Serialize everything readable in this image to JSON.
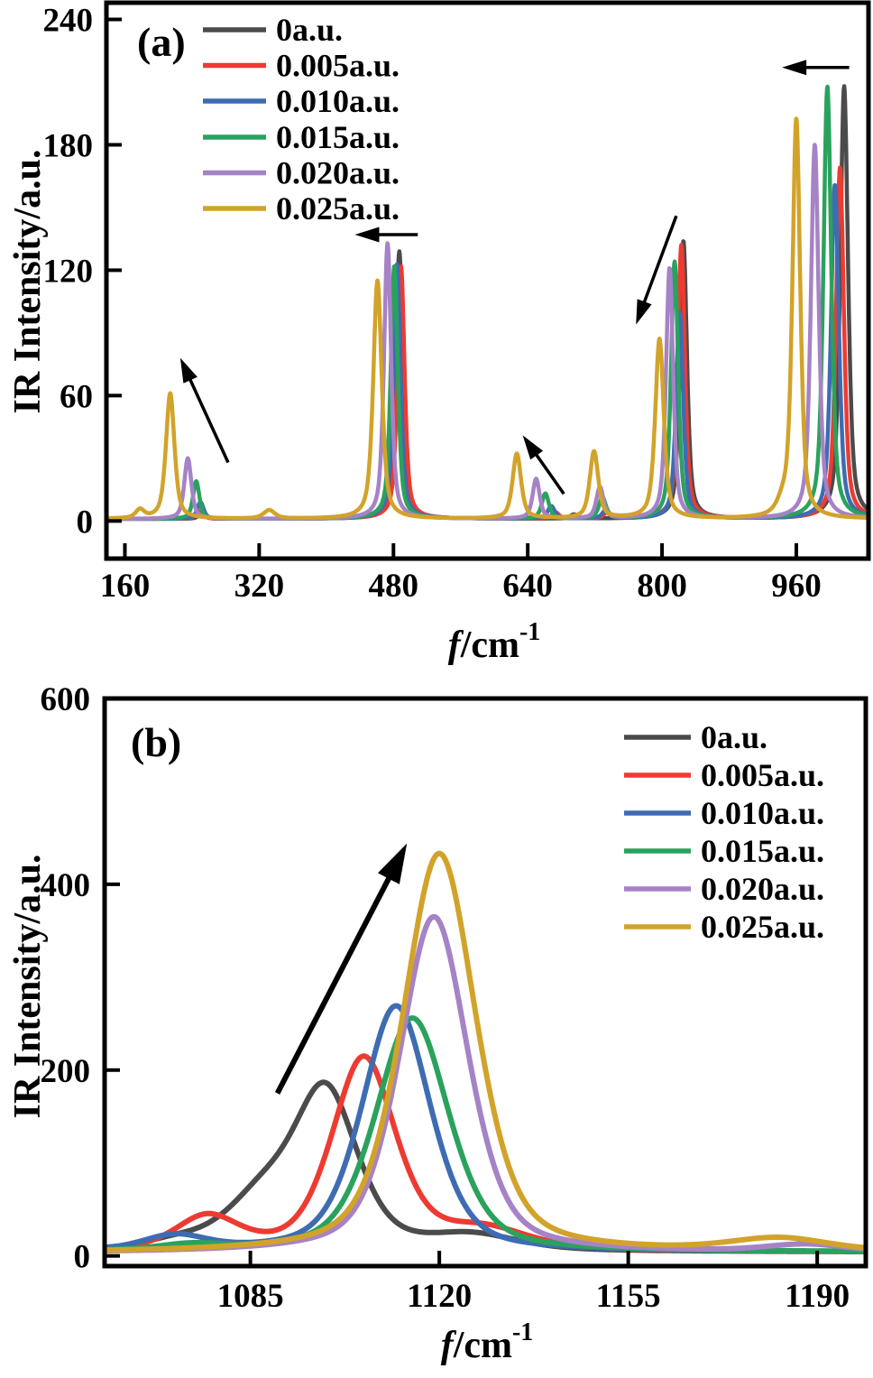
{
  "figure": {
    "description": "Two stacked IR spectra panels showing peak shifts with increasing field strength",
    "legend_labels": [
      "0a.u.",
      "0.005a.u.",
      "0.010a.u.",
      "0.015a.u.",
      "0.020a.u.",
      "0.025a.u."
    ],
    "series_colors": [
      "#4b4b4b",
      "#ed3b32",
      "#3e6cb3",
      "#2aa25e",
      "#a682c6",
      "#d2a32a"
    ]
  },
  "chart_data": [
    {
      "id": "a",
      "type": "line",
      "panel_label": "(a)",
      "xlabel": "f/cm",
      "xlabel_sup": "-1",
      "ylabel": "IR Intensity/a.u.",
      "xlim": [
        138,
        1046
      ],
      "ylim": [
        -18,
        248
      ],
      "xticks": [
        160,
        320,
        480,
        640,
        800,
        960
      ],
      "yticks": [
        0,
        60,
        120,
        180,
        240
      ],
      "legend_position": "top-left",
      "grid": false,
      "voigt_eta": 0.6,
      "series": [
        {
          "name": "0a.u.",
          "color": "#4b4b4b",
          "base": 1,
          "peaks": [
            [
              252,
              2.5,
              5
            ],
            [
              487,
              128,
              5
            ],
            [
              695,
              2,
              5
            ],
            [
              825.5,
              133,
              5
            ],
            [
              1017,
              207,
              5.5
            ]
          ]
        },
        {
          "name": "0.005a.u.",
          "color": "#ed3b32",
          "base": 1,
          "peaks": [
            [
              249,
              3.5,
              5
            ],
            [
              489,
              121,
              5
            ],
            [
              673,
              3,
              5
            ],
            [
              735,
              3,
              5
            ],
            [
              823,
              131,
              5
            ],
            [
              1012,
              168,
              5.5
            ]
          ]
        },
        {
          "name": "0.010a.u.",
          "color": "#3e6cb3",
          "base": 1,
          "peaks": [
            [
              250,
              8,
              4.5
            ],
            [
              484,
              122,
              5
            ],
            [
              668,
              6,
              5
            ],
            [
              733,
              4,
              5
            ],
            [
              821,
              99,
              5
            ],
            [
              1006,
              160,
              5.5
            ]
          ]
        },
        {
          "name": "0.015a.u.",
          "color": "#2aa25e",
          "base": 1,
          "peaks": [
            [
              245,
              18,
              4.5
            ],
            [
              481,
              121,
              5
            ],
            [
              661,
              12,
              5
            ],
            [
              729,
              10,
              5
            ],
            [
              815,
              123,
              5
            ],
            [
              997,
              207,
              5.5
            ]
          ]
        },
        {
          "name": "0.020a.u.",
          "color": "#a682c6",
          "base": 1,
          "peaks": [
            [
              235,
              29,
              5
            ],
            [
              473,
              132,
              5
            ],
            [
              650,
              19,
              5
            ],
            [
              726,
              15,
              5
            ],
            [
              809,
              120,
              5
            ],
            [
              982,
              179,
              5.5
            ]
          ]
        },
        {
          "name": "0.025a.u.",
          "color": "#d2a32a",
          "base": 1,
          "peaks": [
            [
              178,
              4,
              6
            ],
            [
              214,
              60,
              6
            ],
            [
              332,
              4,
              8
            ],
            [
              461,
              114,
              6
            ],
            [
              627,
              31,
              6
            ],
            [
              719,
              32,
              6
            ],
            [
              797,
              86,
              6
            ],
            [
              944,
              5,
              8
            ],
            [
              960,
              191,
              5.5
            ]
          ]
        }
      ],
      "arrows": [
        {
          "from": [
            283,
            28
          ],
          "to": [
            226,
            78
          ]
        },
        {
          "from": [
            509,
            137
          ],
          "to": [
            434,
            137
          ]
        },
        {
          "from": [
            683,
            13
          ],
          "to": [
            634,
            41
          ]
        },
        {
          "from": [
            817,
            146
          ],
          "to": [
            769,
            94
          ]
        },
        {
          "from": [
            1023,
            217
          ],
          "to": [
            943,
            217
          ]
        }
      ]
    },
    {
      "id": "b",
      "type": "line",
      "panel_label": "(b)",
      "xlabel": "f/cm",
      "xlabel_sup": "-1",
      "ylabel": "IR Intensity/a.u.",
      "xlim": [
        1058,
        1199
      ],
      "ylim": [
        -11,
        600
      ],
      "xticks": [
        1085,
        1120,
        1155,
        1190
      ],
      "yticks": [
        0,
        200,
        400,
        600
      ],
      "legend_position": "top-right",
      "grid": false,
      "voigt_eta": 0.45,
      "series": [
        {
          "name": "0a.u.",
          "color": "#4b4b4b",
          "base": 4,
          "peaks": [
            [
              1071,
              8,
              7
            ],
            [
              1087,
              52,
              8
            ],
            [
              1099,
              168,
              7
            ],
            [
              1126,
              16,
              10
            ]
          ]
        },
        {
          "name": "0.005a.u.",
          "color": "#ed3b32",
          "base": 4,
          "peaks": [
            [
              1077,
              36,
              7
            ],
            [
              1106,
              208,
              7
            ],
            [
              1128,
              22,
              10
            ]
          ]
        },
        {
          "name": "0.010a.u.",
          "color": "#3e6cb3",
          "base": 4,
          "peaks": [
            [
              1071,
              16,
              7
            ],
            [
              1112,
              265,
              7.5
            ]
          ]
        },
        {
          "name": "0.015a.u.",
          "color": "#2aa25e",
          "base": 4,
          "peaks": [
            [
              1074,
              6,
              7
            ],
            [
              1115,
              252,
              8
            ]
          ]
        },
        {
          "name": "0.020a.u.",
          "color": "#a682c6",
          "base": 3,
          "peaks": [
            [
              1119,
              362,
              7.5
            ],
            [
              1188,
              8,
              9
            ]
          ]
        },
        {
          "name": "0.025a.u.",
          "color": "#d2a32a",
          "base": 3,
          "peaks": [
            [
              1120,
              430,
              8
            ],
            [
              1183,
              14,
              11
            ]
          ]
        }
      ],
      "arrows": [
        {
          "from": [
            1090,
            175
          ],
          "to": [
            1114,
            444
          ]
        }
      ]
    }
  ]
}
